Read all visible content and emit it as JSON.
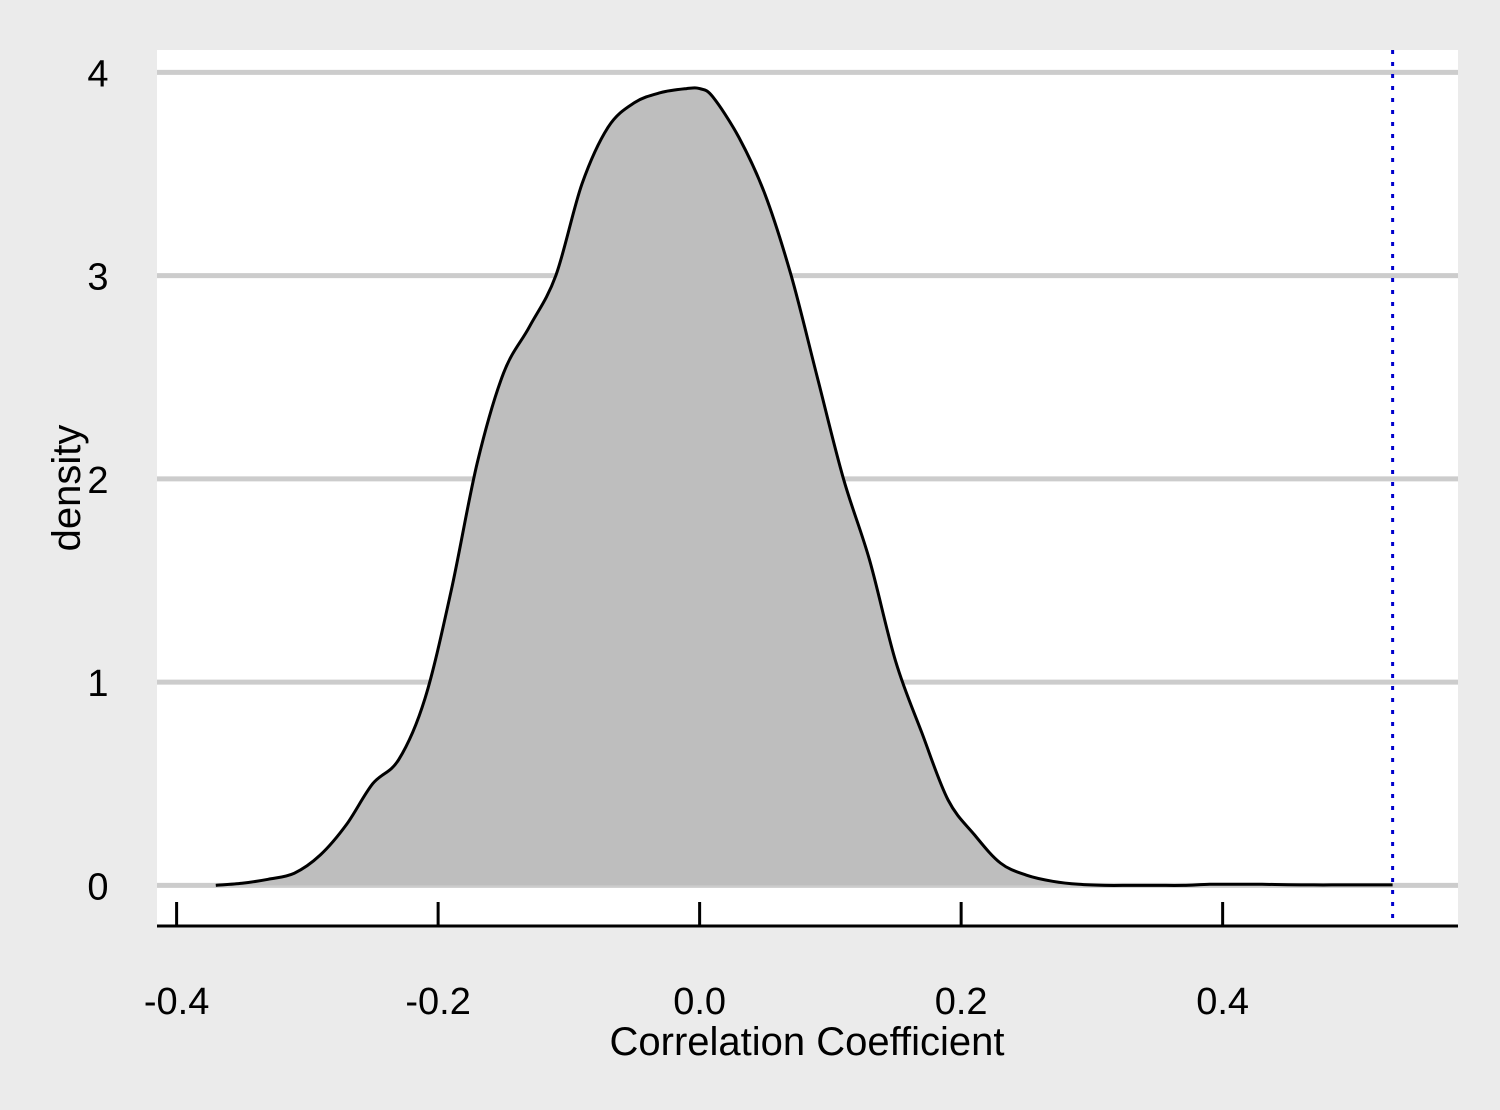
{
  "chart_data": {
    "type": "area",
    "title": "",
    "xlabel": "Correlation Coefficient",
    "ylabel": "density",
    "xlim": [
      -0.415,
      0.58
    ],
    "ylim": [
      -0.2,
      4.11
    ],
    "grid": {
      "horizontal": true,
      "vertical": false
    },
    "x_ticks": [
      -0.4,
      -0.2,
      0.0,
      0.2,
      0.4
    ],
    "x_tick_labels": [
      "-0.4",
      "-0.2",
      "0.0",
      "0.2",
      "0.4"
    ],
    "y_ticks": [
      0,
      1,
      2,
      3,
      4
    ],
    "y_tick_labels": [
      "0",
      "1",
      "2",
      "3",
      "4"
    ],
    "colors": {
      "background": "#ebebeb",
      "panel": "#ffffff",
      "grid": "#cccccc",
      "fill": "#bebebe",
      "line": "#000000",
      "reference_line": "#0000cc"
    },
    "series": [
      {
        "x": [
          -0.37,
          -0.35,
          -0.33,
          -0.31,
          -0.29,
          -0.27,
          -0.25,
          -0.23,
          -0.21,
          -0.19,
          -0.17,
          -0.15,
          -0.13,
          -0.11,
          -0.09,
          -0.07,
          -0.05,
          -0.03,
          -0.01,
          0.0,
          0.01,
          0.03,
          0.05,
          0.07,
          0.09,
          0.11,
          0.13,
          0.15,
          0.17,
          0.19,
          0.21,
          0.23,
          0.25,
          0.27,
          0.29,
          0.31,
          0.33,
          0.35,
          0.37,
          0.39,
          0.41,
          0.43,
          0.45,
          0.47,
          0.49,
          0.51,
          0.53
        ],
        "y": [
          0.0,
          0.01,
          0.03,
          0.06,
          0.15,
          0.3,
          0.5,
          0.62,
          0.92,
          1.45,
          2.08,
          2.52,
          2.75,
          3.0,
          3.45,
          3.73,
          3.85,
          3.9,
          3.92,
          3.92,
          3.88,
          3.68,
          3.4,
          3.0,
          2.5,
          2.0,
          1.6,
          1.1,
          0.75,
          0.42,
          0.25,
          0.11,
          0.05,
          0.02,
          0.005,
          0.0,
          0.0,
          0.0,
          0.0,
          0.005,
          0.005,
          0.005,
          0.003,
          0.002,
          0.002,
          0.002,
          0.002
        ]
      }
    ],
    "reference_line": {
      "x": 0.53,
      "style": "dotted"
    }
  }
}
